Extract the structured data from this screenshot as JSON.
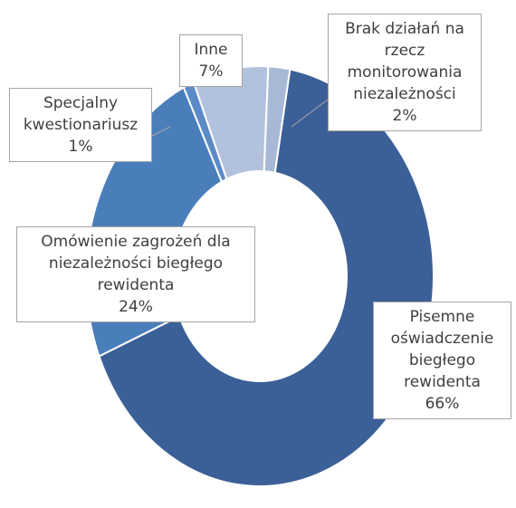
{
  "chart_data": {
    "type": "donut",
    "categories": [
      "Pisemne oświadczenie biegłego rewidenta",
      "Omówienie zagrożeń dla niezależności biegłego rewidenta",
      "Specjalny kwestionariusz",
      "Inne",
      "Brak działań na rzecz monitorowania niezależności"
    ],
    "values": [
      66,
      24,
      1,
      7,
      2
    ],
    "value_labels": [
      "66%",
      "24%",
      "1%",
      "7%",
      "2%"
    ],
    "colors": [
      "#3b6097",
      "#4a7ebb",
      "#5b8bc7",
      "#b3c2dc",
      "#a7b9d6"
    ]
  }
}
